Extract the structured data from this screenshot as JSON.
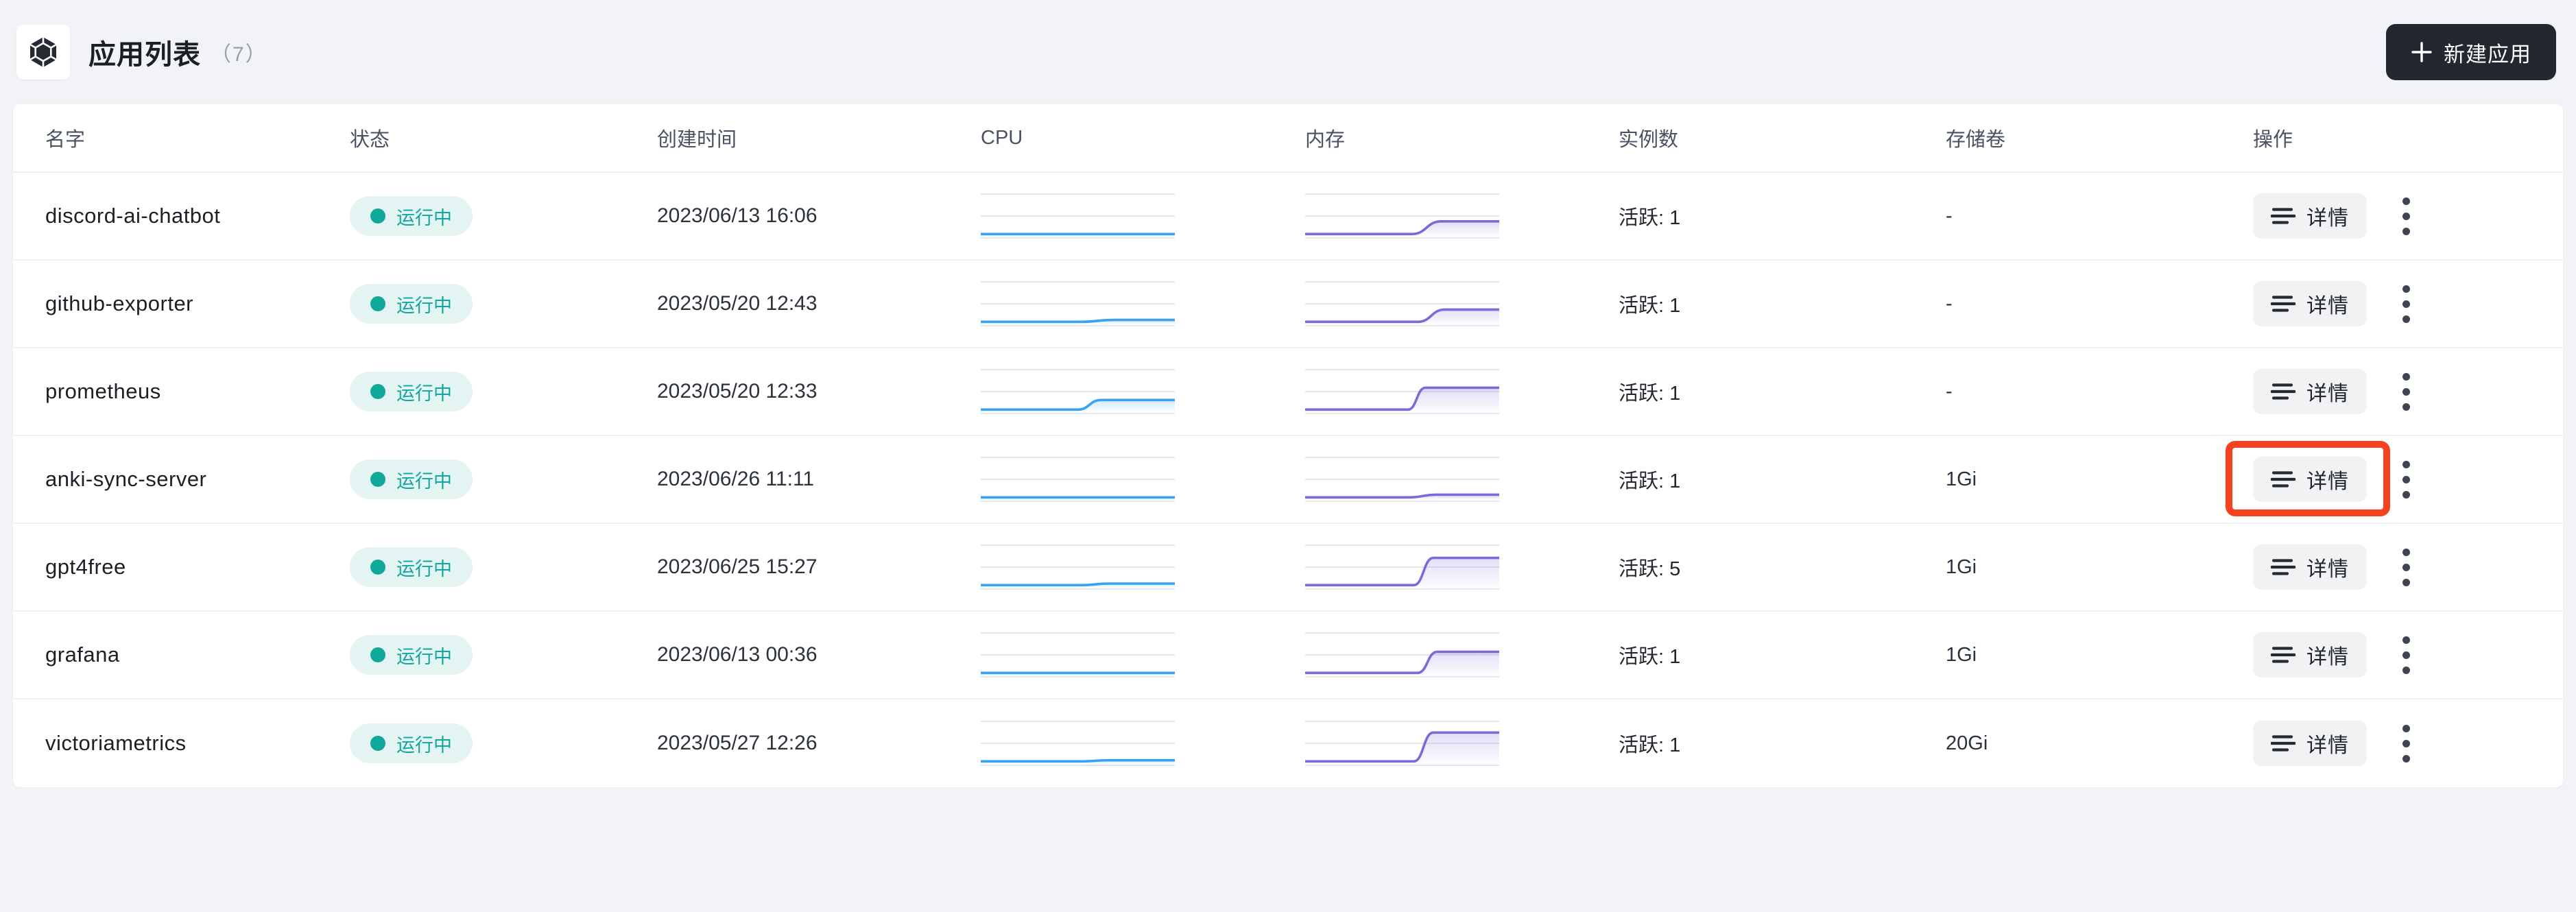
{
  "header": {
    "title": "应用列表",
    "count": "（7）",
    "new_app_label": "新建应用"
  },
  "table": {
    "columns": [
      "名字",
      "状态",
      "创建时间",
      "CPU",
      "内存",
      "实例数",
      "存储卷",
      "操作"
    ],
    "labels": {
      "details": "详情"
    },
    "rows": [
      {
        "name": "discord-ai-chatbot",
        "status": "运行中",
        "created": "2023/06/13 16:06",
        "instances": "活跃: 1",
        "storage": "-",
        "highlighted": false,
        "cpu": {
          "start": 0.03,
          "end": 0.03,
          "rise_start": 0.5,
          "rise_end": 0.6
        },
        "mem": {
          "start": 0.03,
          "end": 0.36,
          "rise_start": 0.55,
          "rise_end": 0.7
        }
      },
      {
        "name": "github-exporter",
        "status": "运行中",
        "created": "2023/05/20 12:43",
        "instances": "活跃: 1",
        "storage": "-",
        "highlighted": false,
        "cpu": {
          "start": 0.03,
          "end": 0.08,
          "rise_start": 0.52,
          "rise_end": 0.68
        },
        "mem": {
          "start": 0.03,
          "end": 0.35,
          "rise_start": 0.58,
          "rise_end": 0.72
        }
      },
      {
        "name": "prometheus",
        "status": "运行中",
        "created": "2023/05/20 12:33",
        "instances": "活跃: 1",
        "storage": "-",
        "highlighted": false,
        "cpu": {
          "start": 0.03,
          "end": 0.28,
          "rise_start": 0.5,
          "rise_end": 0.62
        },
        "mem": {
          "start": 0.03,
          "end": 0.6,
          "rise_start": 0.53,
          "rise_end": 0.62
        }
      },
      {
        "name": "anki-sync-server",
        "status": "运行中",
        "created": "2023/06/26 11:11",
        "instances": "活跃: 1",
        "storage": "1Gi",
        "highlighted": true,
        "cpu": {
          "start": 0.03,
          "end": 0.03,
          "rise_start": 0.5,
          "rise_end": 0.6
        },
        "mem": {
          "start": 0.03,
          "end": 0.1,
          "rise_start": 0.53,
          "rise_end": 0.68
        }
      },
      {
        "name": "gpt4free",
        "status": "运行中",
        "created": "2023/06/25 15:27",
        "instances": "活跃: 5",
        "storage": "1Gi",
        "highlighted": false,
        "cpu": {
          "start": 0.03,
          "end": 0.07,
          "rise_start": 0.52,
          "rise_end": 0.66
        },
        "mem": {
          "start": 0.03,
          "end": 0.74,
          "rise_start": 0.56,
          "rise_end": 0.66
        }
      },
      {
        "name": "grafana",
        "status": "运行中",
        "created": "2023/06/13 00:36",
        "instances": "活跃: 1",
        "storage": "1Gi",
        "highlighted": false,
        "cpu": {
          "start": 0.03,
          "end": 0.03,
          "rise_start": 0.5,
          "rise_end": 0.6
        },
        "mem": {
          "start": 0.03,
          "end": 0.58,
          "rise_start": 0.58,
          "rise_end": 0.68
        }
      },
      {
        "name": "victoriametrics",
        "status": "运行中",
        "created": "2023/05/27 12:26",
        "instances": "活跃: 1",
        "storage": "20Gi",
        "highlighted": false,
        "cpu": {
          "start": 0.03,
          "end": 0.06,
          "rise_start": 0.52,
          "rise_end": 0.66
        },
        "mem": {
          "start": 0.03,
          "end": 0.78,
          "rise_start": 0.56,
          "rise_end": 0.66
        }
      }
    ]
  },
  "colors": {
    "cpu_line": "#38A3F1",
    "mem_line": "#7A6BD8",
    "status_teal": "#10A79C",
    "highlight_red": "#F4411F",
    "primary_button_bg": "#23272F",
    "page_bg": "#F1F3F6"
  }
}
